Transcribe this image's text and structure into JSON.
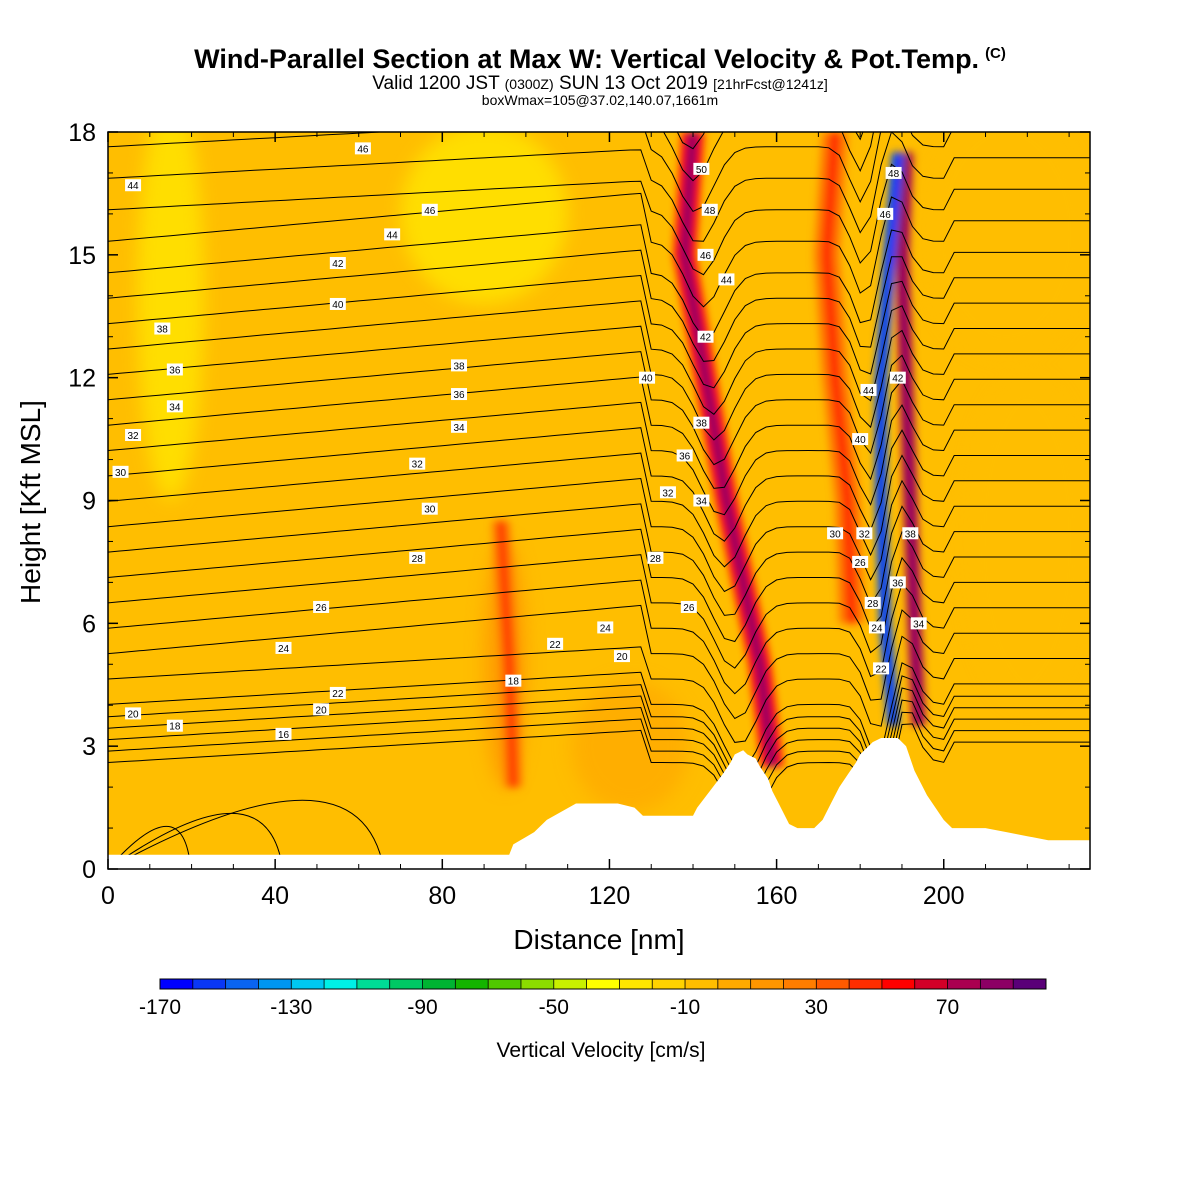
{
  "header": {
    "title": "Wind-Parallel Section at Max W: Vertical Velocity & Pot.Temp.",
    "copyright": "(C)",
    "valid_main_a": "Valid 1200 JST",
    "valid_utc": "(0300Z)",
    "valid_main_b": "SUN 13 Oct 2019",
    "valid_fcst": "[21hrFcst@1241z]",
    "box_wmax": "boxWmax=105@37.02,140.07,1661m"
  },
  "chart_data": {
    "type": "heatmap",
    "xlabel": "Distance [nm]",
    "ylabel": "Height [Kft MSL]",
    "xlim": [
      0,
      235
    ],
    "ylim": [
      0,
      18
    ],
    "x_ticks": [
      0,
      40,
      80,
      120,
      160,
      200
    ],
    "y_ticks": [
      0,
      3,
      6,
      9,
      12,
      15,
      18
    ],
    "colorbar": {
      "label": "Vertical Velocity [cm/s]",
      "tick_labels": [
        -170,
        -130,
        -90,
        -50,
        -10,
        30,
        70
      ],
      "bins": [
        -170,
        -160,
        -150,
        -140,
        -130,
        -120,
        -110,
        -100,
        -90,
        -80,
        -70,
        -60,
        -50,
        -40,
        -30,
        -20,
        -10,
        0,
        10,
        20,
        30,
        40,
        50,
        60,
        70,
        80,
        90
      ],
      "colors": [
        "#0000ff",
        "#0a37f5",
        "#0a64f0",
        "#0096f0",
        "#00c8f0",
        "#00f0e6",
        "#00dc96",
        "#00c864",
        "#00b432",
        "#14b400",
        "#50c800",
        "#8cdc00",
        "#c8f000",
        "#ffff00",
        "#ffe600",
        "#ffd200",
        "#ffbe00",
        "#ffaa00",
        "#ff9600",
        "#ff7d00",
        "#ff5a00",
        "#ff2d00",
        "#ff0000",
        "#d20028",
        "#aa0050",
        "#8c0064",
        "#5a0078"
      ]
    },
    "w_features": [
      {
        "x": [
          140,
          138,
          143,
          148,
          152,
          156,
          159
        ],
        "y": [
          18,
          15,
          12,
          9,
          7,
          5,
          2.5
        ],
        "w": 55
      },
      {
        "x": [
          191,
          190,
          191,
          192,
          193,
          194
        ],
        "y": [
          17.5,
          15,
          12,
          9,
          6,
          3.5
        ],
        "w": 75
      },
      {
        "x": [
          189,
          187,
          185,
          185,
          186,
          188
        ],
        "y": [
          17.5,
          15,
          12,
          9,
          6,
          3.5
        ],
        "w": -150
      },
      {
        "x": [
          174,
          172,
          174,
          177,
          178
        ],
        "y": [
          18,
          15,
          12,
          9,
          6
        ],
        "w": 20
      },
      {
        "x": [
          97,
          96,
          94
        ],
        "y": [
          2.0,
          5.0,
          8.5
        ],
        "w": 20
      }
    ],
    "terrain": {
      "x": [
        0,
        96,
        97,
        102,
        105,
        112,
        118,
        122,
        126,
        128,
        131,
        133,
        135,
        137,
        139,
        140,
        141,
        144,
        147,
        149,
        150,
        152,
        153,
        155,
        156,
        158,
        159,
        161,
        163,
        165,
        167,
        169,
        171,
        173,
        175,
        177,
        179,
        180,
        182,
        183,
        185,
        187,
        189,
        191,
        192,
        193,
        196,
        198,
        200,
        202,
        206,
        210,
        215,
        220,
        225,
        229,
        235
      ],
      "y": [
        0.35,
        0.35,
        0.6,
        0.9,
        1.2,
        1.6,
        1.6,
        1.6,
        1.5,
        1.3,
        1.3,
        1.3,
        1.3,
        1.3,
        1.3,
        1.3,
        1.5,
        1.9,
        2.3,
        2.6,
        2.8,
        2.9,
        2.8,
        2.7,
        2.5,
        2.2,
        1.9,
        1.5,
        1.1,
        1.0,
        1.0,
        1.0,
        1.2,
        1.6,
        2.0,
        2.3,
        2.6,
        2.8,
        3.0,
        3.1,
        3.2,
        3.2,
        3.2,
        3.0,
        2.7,
        2.4,
        1.8,
        1.5,
        1.2,
        1.0,
        1.0,
        1.0,
        0.9,
        0.8,
        0.7,
        0.7,
        0.7
      ]
    },
    "theta_contour_labels": [
      {
        "x": 61,
        "y": 17.6,
        "v": "46"
      },
      {
        "x": 6,
        "y": 16.7,
        "v": "44"
      },
      {
        "x": 77,
        "y": 16.1,
        "v": "46"
      },
      {
        "x": 68,
        "y": 15.5,
        "v": "44"
      },
      {
        "x": 55,
        "y": 14.8,
        "v": "42"
      },
      {
        "x": 55,
        "y": 13.8,
        "v": "40"
      },
      {
        "x": 13,
        "y": 13.2,
        "v": "38"
      },
      {
        "x": 16,
        "y": 12.2,
        "v": "36"
      },
      {
        "x": 16,
        "y": 11.3,
        "v": "34"
      },
      {
        "x": 6,
        "y": 10.6,
        "v": "32"
      },
      {
        "x": 3,
        "y": 9.7,
        "v": "30"
      },
      {
        "x": 84,
        "y": 12.3,
        "v": "38"
      },
      {
        "x": 84,
        "y": 11.6,
        "v": "36"
      },
      {
        "x": 84,
        "y": 10.8,
        "v": "34"
      },
      {
        "x": 74,
        "y": 9.9,
        "v": "32"
      },
      {
        "x": 77,
        "y": 8.8,
        "v": "30"
      },
      {
        "x": 74,
        "y": 7.6,
        "v": "28"
      },
      {
        "x": 51,
        "y": 6.4,
        "v": "26"
      },
      {
        "x": 42,
        "y": 5.4,
        "v": "24"
      },
      {
        "x": 55,
        "y": 4.3,
        "v": "22"
      },
      {
        "x": 51,
        "y": 3.9,
        "v": "20"
      },
      {
        "x": 6,
        "y": 3.8,
        "v": "20"
      },
      {
        "x": 16,
        "y": 3.5,
        "v": "18"
      },
      {
        "x": 42,
        "y": 3.3,
        "v": "16"
      },
      {
        "x": 97,
        "y": 4.6,
        "v": "18"
      },
      {
        "x": 107,
        "y": 5.5,
        "v": "22"
      },
      {
        "x": 119,
        "y": 5.9,
        "v": "24"
      },
      {
        "x": 123,
        "y": 5.2,
        "v": "20"
      },
      {
        "x": 131,
        "y": 7.6,
        "v": "28"
      },
      {
        "x": 139,
        "y": 6.4,
        "v": "26"
      },
      {
        "x": 134,
        "y": 9.2,
        "v": "32"
      },
      {
        "x": 142,
        "y": 9.0,
        "v": "34"
      },
      {
        "x": 138,
        "y": 10.1,
        "v": "36"
      },
      {
        "x": 142,
        "y": 10.9,
        "v": "38"
      },
      {
        "x": 129,
        "y": 12.0,
        "v": "40"
      },
      {
        "x": 143,
        "y": 13.0,
        "v": "42"
      },
      {
        "x": 148,
        "y": 14.4,
        "v": "44"
      },
      {
        "x": 143,
        "y": 15.0,
        "v": "46"
      },
      {
        "x": 144,
        "y": 16.1,
        "v": "48"
      },
      {
        "x": 142,
        "y": 17.1,
        "v": "50"
      },
      {
        "x": 188,
        "y": 17.0,
        "v": "48"
      },
      {
        "x": 186,
        "y": 16.0,
        "v": "46"
      },
      {
        "x": 182,
        "y": 11.7,
        "v": "44"
      },
      {
        "x": 189,
        "y": 12.0,
        "v": "42"
      },
      {
        "x": 180,
        "y": 10.5,
        "v": "40"
      },
      {
        "x": 192,
        "y": 8.2,
        "v": "38"
      },
      {
        "x": 174,
        "y": 8.2,
        "v": "30"
      },
      {
        "x": 181,
        "y": 8.2,
        "v": "32"
      },
      {
        "x": 180,
        "y": 7.5,
        "v": "26"
      },
      {
        "x": 183,
        "y": 6.5,
        "v": "28"
      },
      {
        "x": 189,
        "y": 7.0,
        "v": "36"
      },
      {
        "x": 184,
        "y": 5.9,
        "v": "24"
      },
      {
        "x": 194,
        "y": 6.0,
        "v": "34"
      },
      {
        "x": 185,
        "y": 4.9,
        "v": "22"
      }
    ]
  }
}
